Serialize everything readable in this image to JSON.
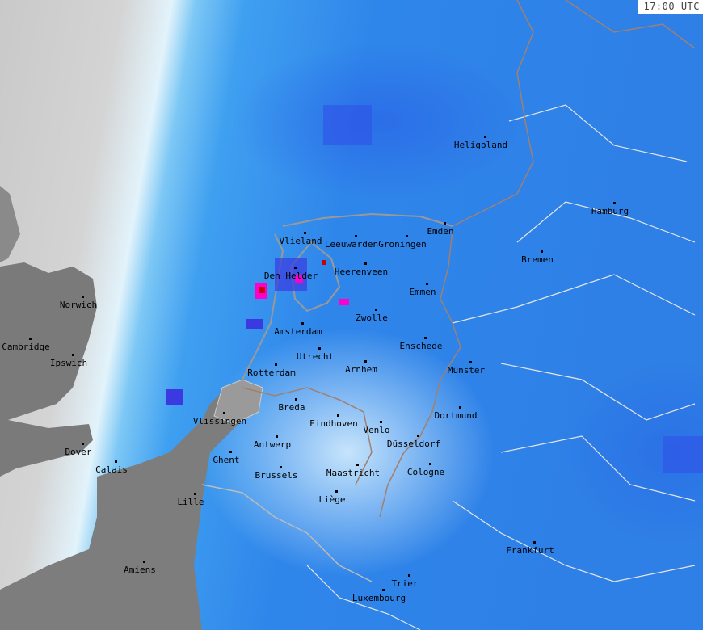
{
  "timestamp": "17:00 UTC",
  "map_type": "precipitation radar",
  "colors": {
    "cloud_light": "#e2f3fb",
    "precip_light": "#7cc7f5",
    "precip_medium": "#2f86ea",
    "precip_heavy": "#3a3ae0",
    "precip_intense": "#ff00cc",
    "precip_extreme": "#cc0000",
    "land_no_data": "#808080",
    "border": "#a08070"
  },
  "cities": [
    "Heligoland",
    "Hamburg",
    "Bremen",
    "Emden",
    "Vlieland",
    "Leeuwarden",
    "Groningen",
    "Den Helder",
    "Heerenveen",
    "Emmen",
    "Zwolle",
    "Amsterdam",
    "Enschede",
    "Utrecht",
    "Arnhem",
    "Rotterdam",
    "Münster",
    "Breda",
    "Dortmund",
    "Vlissingen",
    "Eindhoven",
    "Venlo",
    "Antwerp",
    "Düsseldorf",
    "Dover",
    "Ghent",
    "Calais",
    "Brussels",
    "Maastricht",
    "Cologne",
    "Liège",
    "Lille",
    "Frankfurt",
    "Amiens",
    "Trier",
    "Luxembourg",
    "Norwich",
    "Cambridge",
    "Ipswich"
  ]
}
